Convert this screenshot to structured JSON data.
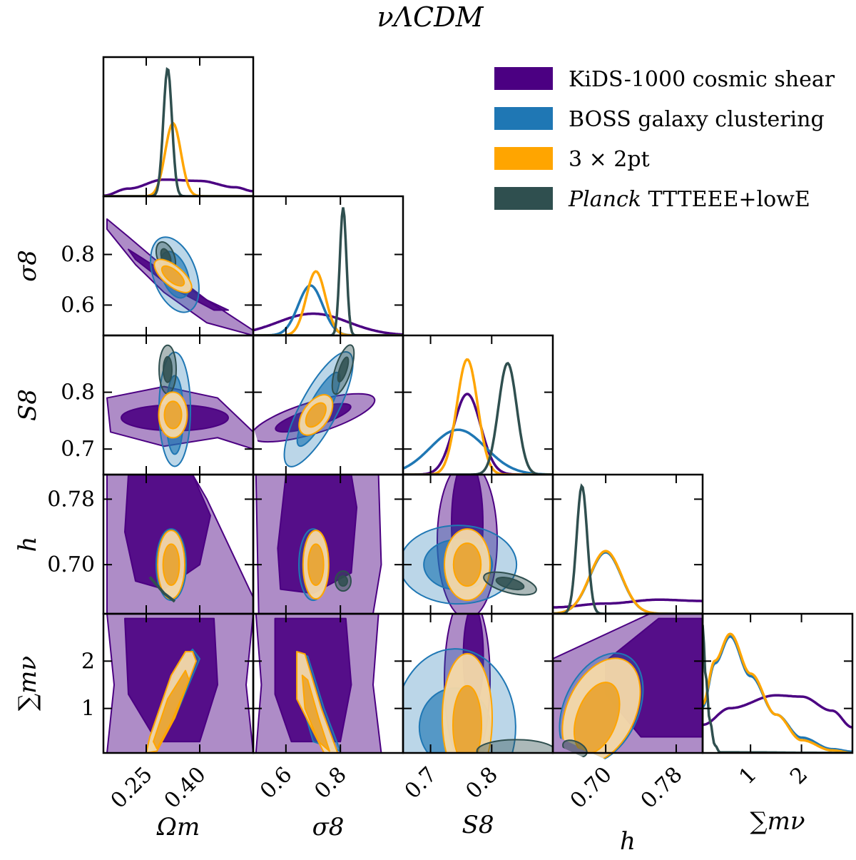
{
  "title": "νΛCDM",
  "colors": {
    "kids": "#4B0082",
    "boss": "#1F77B4",
    "pt": "#FFA500",
    "planck": "#2F4F4F"
  },
  "legend": {
    "entries": [
      {
        "key": "kids",
        "label": "KiDS-1000 cosmic shear"
      },
      {
        "key": "boss",
        "label": "BOSS galaxy clustering"
      },
      {
        "key": "pt",
        "label": "3 × 2pt"
      },
      {
        "key": "planck",
        "italic_part": "Planck",
        "label": " TTTEEE+lowE"
      }
    ]
  },
  "chart_data": {
    "type": "corner",
    "parameters": [
      "Ωm",
      "σ8",
      "S8",
      "h",
      "∑mν"
    ],
    "axis_labels": {
      "x": [
        "Ωm",
        "σ8",
        "S8",
        "h",
        "∑mν"
      ],
      "y": [
        "σ8",
        "S8",
        "h",
        "∑mν"
      ]
    },
    "ranges": {
      "Om": [
        0.13,
        0.55
      ],
      "s8": [
        0.48,
        1.03
      ],
      "S8": [
        0.655,
        0.9
      ],
      "h": [
        0.64,
        0.81
      ],
      "mnu": [
        0.06,
        3.0
      ]
    },
    "ticks": {
      "Om": [
        "0.25",
        "0.40"
      ],
      "s8": [
        "0.6",
        "0.8"
      ],
      "S8": [
        "0.7",
        "0.8"
      ],
      "h": [
        "0.70",
        "0.78"
      ],
      "mnu": [
        "1",
        "2"
      ]
    },
    "tick_values": {
      "Om": [
        0.25,
        0.4
      ],
      "s8": [
        0.6,
        0.8
      ],
      "S8": [
        0.7,
        0.8
      ],
      "h": [
        0.7,
        0.78
      ],
      "mnu": [
        1,
        2
      ]
    },
    "marginals": {
      "Om": {
        "kids": [
          [
            0.13,
            0.005
          ],
          [
            0.2,
            0.06
          ],
          [
            0.3,
            0.13
          ],
          [
            0.4,
            0.12
          ],
          [
            0.5,
            0.07
          ],
          [
            0.55,
            0.04
          ]
        ],
        "pt": {
          "mean": 0.325,
          "sigma": 0.022,
          "peak": 0.57
        },
        "planck": {
          "mean": 0.31,
          "sigma": 0.012,
          "peak": 1.0
        }
      },
      "s8": {
        "kids": {
          "mean": 0.7,
          "sigma": 0.13,
          "peak": 0.17
        },
        "boss": {
          "mean": 0.69,
          "sigma": 0.045,
          "peak": 0.39
        },
        "pt": {
          "mean": 0.71,
          "sigma": 0.035,
          "peak": 0.5
        },
        "planck": {
          "mean": 0.81,
          "sigma": 0.012,
          "peak": 1.0
        }
      },
      "S8": {
        "kids": {
          "mean": 0.76,
          "sigma": 0.022,
          "peak": 0.63
        },
        "boss": {
          "mean": 0.745,
          "sigma": 0.045,
          "peak": 0.35
        },
        "pt": {
          "mean": 0.76,
          "sigma": 0.017,
          "peak": 0.9
        },
        "planck": {
          "mean": 0.826,
          "sigma": 0.015,
          "peak": 0.87
        }
      },
      "h": {
        "kids": [
          [
            0.64,
            0.05
          ],
          [
            0.7,
            0.08
          ],
          [
            0.76,
            0.11
          ],
          [
            0.81,
            0.1
          ]
        ],
        "boss": {
          "mean": 0.7,
          "sigma": 0.018,
          "peak": 0.48
        },
        "pt": {
          "mean": 0.7,
          "sigma": 0.018,
          "peak": 0.49
        },
        "planck": {
          "mean": 0.673,
          "sigma": 0.006,
          "peak": 1.0
        }
      },
      "mnu": {
        "kids": [
          [
            0.06,
            0.22
          ],
          [
            0.6,
            0.35
          ],
          [
            1.5,
            0.45
          ],
          [
            2.0,
            0.44
          ],
          [
            2.6,
            0.33
          ],
          [
            3.0,
            0.2
          ]
        ],
        "boss": [
          [
            0.06,
            0.36
          ],
          [
            0.3,
            0.7
          ],
          [
            0.6,
            0.91
          ],
          [
            1.0,
            0.6
          ],
          [
            1.5,
            0.3
          ],
          [
            2.0,
            0.12
          ],
          [
            2.6,
            0.03
          ],
          [
            3.0,
            0.01
          ]
        ],
        "pt": [
          [
            0.06,
            0.38
          ],
          [
            0.3,
            0.72
          ],
          [
            0.6,
            0.93
          ],
          [
            1.0,
            0.62
          ],
          [
            1.5,
            0.3
          ],
          [
            2.0,
            0.1
          ],
          [
            2.6,
            0.02
          ],
          [
            3.0,
            0.0
          ]
        ],
        "planck": [
          [
            0.06,
            1.0
          ],
          [
            0.12,
            0.6
          ],
          [
            0.2,
            0.25
          ],
          [
            0.3,
            0.06
          ],
          [
            0.4,
            0.005
          ],
          [
            3.0,
            0
          ]
        ]
      }
    },
    "contours_2d": {
      "s8_Om": {
        "kids": {
          "cx": 0.33,
          "cy": 0.73,
          "corr": -0.96,
          "sx": 0.11,
          "sy": 0.11
        },
        "boss": {
          "cx": 0.335,
          "cy": 0.72,
          "corr": -0.4,
          "sx": 0.03,
          "sy": 0.055
        },
        "pt": {
          "cx": 0.325,
          "cy": 0.715,
          "corr": -0.7,
          "sx": 0.022,
          "sy": 0.035
        },
        "planck": {
          "cx": 0.31,
          "cy": 0.81,
          "corr": -0.5,
          "sx": 0.012,
          "sy": 0.012
        }
      }
    }
  }
}
